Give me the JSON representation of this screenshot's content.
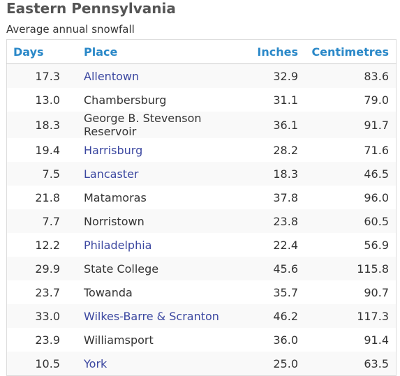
{
  "page": {
    "title": "Eastern Pennsylvania",
    "caption": "Average annual snowfall"
  },
  "table": {
    "headers": {
      "days": "Days",
      "place": "Place",
      "inches": "Inches",
      "centimetres": "Centimetres"
    },
    "header_color": "#2a88c8",
    "link_color": "#3b47a0",
    "rows": [
      {
        "days": "17.3",
        "place": "Allentown",
        "inches": "32.9",
        "centimetres": "83.6",
        "is_link": true
      },
      {
        "days": "13.0",
        "place": "Chambersburg",
        "inches": "31.1",
        "centimetres": "79.0",
        "is_link": false
      },
      {
        "days": "18.3",
        "place": "George B. Stevenson Reservoir",
        "inches": "36.1",
        "centimetres": "91.7",
        "is_link": false
      },
      {
        "days": "19.4",
        "place": "Harrisburg",
        "inches": "28.2",
        "centimetres": "71.6",
        "is_link": true
      },
      {
        "days": "7.5",
        "place": "Lancaster",
        "inches": "18.3",
        "centimetres": "46.5",
        "is_link": true
      },
      {
        "days": "21.8",
        "place": "Matamoras",
        "inches": "37.8",
        "centimetres": "96.0",
        "is_link": false
      },
      {
        "days": "7.7",
        "place": "Norristown",
        "inches": "23.8",
        "centimetres": "60.5",
        "is_link": false
      },
      {
        "days": "12.2",
        "place": "Philadelphia",
        "inches": "22.4",
        "centimetres": "56.9",
        "is_link": true
      },
      {
        "days": "29.9",
        "place": "State College",
        "inches": "45.6",
        "centimetres": "115.8",
        "is_link": false
      },
      {
        "days": "23.7",
        "place": "Towanda",
        "inches": "35.7",
        "centimetres": "90.7",
        "is_link": false
      },
      {
        "days": "33.0",
        "place": "Wilkes-Barre & Scranton",
        "inches": "46.2",
        "centimetres": "117.3",
        "is_link": true
      },
      {
        "days": "23.9",
        "place": "Williamsport",
        "inches": "36.0",
        "centimetres": "91.4",
        "is_link": false
      },
      {
        "days": "10.5",
        "place": "York",
        "inches": "25.0",
        "centimetres": "63.5",
        "is_link": true
      }
    ]
  }
}
